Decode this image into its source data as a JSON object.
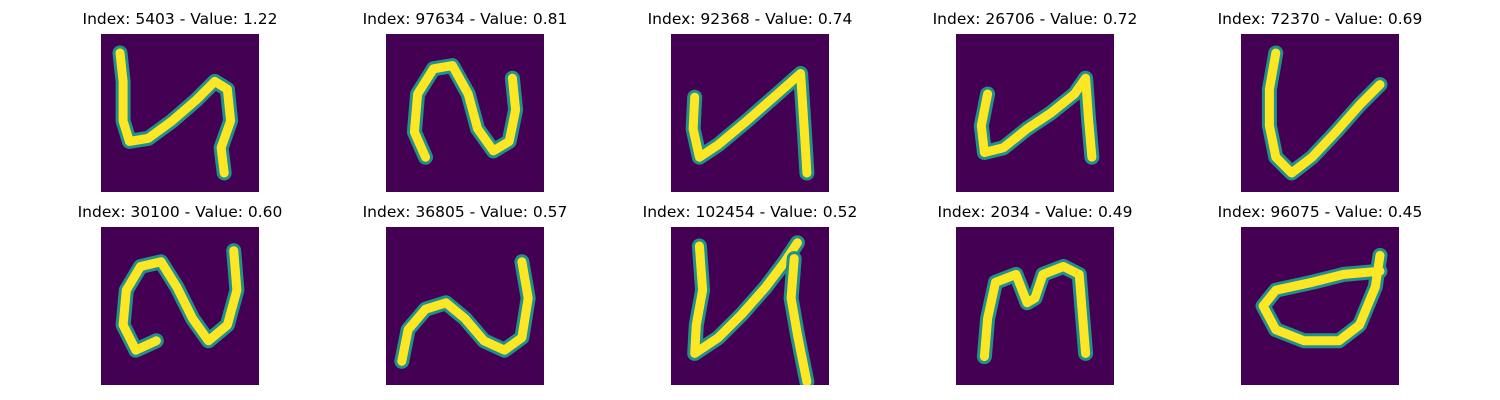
{
  "colors": {
    "background": "#ffffff",
    "image_low": "#440154",
    "image_mid": "#21918c",
    "image_high": "#fde725"
  },
  "panels": [
    {
      "title": "Index: 5403 - Value: 1.22",
      "index": 5403,
      "value": 1.22,
      "strokes": [
        [
          [
            0.12,
            0.12
          ],
          [
            0.14,
            0.3
          ],
          [
            0.14,
            0.55
          ],
          [
            0.18,
            0.68
          ],
          [
            0.3,
            0.66
          ],
          [
            0.45,
            0.55
          ],
          [
            0.6,
            0.42
          ],
          [
            0.72,
            0.3
          ],
          [
            0.8,
            0.35
          ],
          [
            0.82,
            0.55
          ],
          [
            0.76,
            0.72
          ],
          [
            0.78,
            0.88
          ]
        ]
      ]
    },
    {
      "title": "Index: 97634 - Value: 0.81",
      "index": 97634,
      "value": 0.81,
      "strokes": [
        [
          [
            0.25,
            0.78
          ],
          [
            0.18,
            0.62
          ],
          [
            0.2,
            0.38
          ],
          [
            0.3,
            0.22
          ],
          [
            0.42,
            0.2
          ],
          [
            0.52,
            0.38
          ],
          [
            0.58,
            0.6
          ],
          [
            0.68,
            0.74
          ],
          [
            0.78,
            0.68
          ],
          [
            0.82,
            0.48
          ],
          [
            0.8,
            0.28
          ]
        ]
      ]
    },
    {
      "title": "Index: 92368 - Value: 0.74",
      "index": 92368,
      "value": 0.74,
      "strokes": [
        [
          [
            0.15,
            0.4
          ],
          [
            0.14,
            0.6
          ],
          [
            0.18,
            0.78
          ],
          [
            0.3,
            0.7
          ],
          [
            0.48,
            0.55
          ],
          [
            0.65,
            0.4
          ],
          [
            0.82,
            0.25
          ],
          [
            0.84,
            0.55
          ],
          [
            0.86,
            0.88
          ]
        ]
      ]
    },
    {
      "title": "Index: 26706 - Value: 0.72",
      "index": 26706,
      "value": 0.72,
      "strokes": [
        [
          [
            0.2,
            0.38
          ],
          [
            0.16,
            0.58
          ],
          [
            0.18,
            0.75
          ],
          [
            0.3,
            0.72
          ],
          [
            0.45,
            0.6
          ],
          [
            0.6,
            0.5
          ],
          [
            0.75,
            0.38
          ],
          [
            0.82,
            0.28
          ],
          [
            0.84,
            0.55
          ],
          [
            0.86,
            0.78
          ]
        ]
      ]
    },
    {
      "title": "Index: 72370 - Value: 0.69",
      "index": 72370,
      "value": 0.69,
      "strokes": [
        [
          [
            0.22,
            0.12
          ],
          [
            0.18,
            0.35
          ],
          [
            0.18,
            0.58
          ],
          [
            0.22,
            0.78
          ],
          [
            0.32,
            0.88
          ],
          [
            0.45,
            0.78
          ],
          [
            0.6,
            0.62
          ],
          [
            0.75,
            0.45
          ],
          [
            0.88,
            0.32
          ]
        ]
      ]
    },
    {
      "title": "Index: 30100 - Value: 0.60",
      "index": 30100,
      "value": 0.6,
      "strokes": [
        [
          [
            0.35,
            0.72
          ],
          [
            0.22,
            0.78
          ],
          [
            0.14,
            0.62
          ],
          [
            0.16,
            0.4
          ],
          [
            0.25,
            0.25
          ],
          [
            0.38,
            0.22
          ],
          [
            0.48,
            0.38
          ],
          [
            0.58,
            0.58
          ],
          [
            0.68,
            0.72
          ],
          [
            0.8,
            0.62
          ],
          [
            0.86,
            0.4
          ],
          [
            0.84,
            0.15
          ]
        ]
      ]
    },
    {
      "title": "Index: 36805 - Value: 0.57",
      "index": 36805,
      "value": 0.57,
      "strokes": [
        [
          [
            0.1,
            0.85
          ],
          [
            0.14,
            0.65
          ],
          [
            0.25,
            0.52
          ],
          [
            0.38,
            0.48
          ],
          [
            0.5,
            0.58
          ],
          [
            0.62,
            0.72
          ],
          [
            0.75,
            0.78
          ],
          [
            0.86,
            0.7
          ],
          [
            0.9,
            0.45
          ],
          [
            0.86,
            0.22
          ]
        ]
      ]
    },
    {
      "title": "Index: 102454 - Value: 0.52",
      "index": 102454,
      "value": 0.52,
      "strokes": [
        [
          [
            0.18,
            0.12
          ],
          [
            0.2,
            0.4
          ],
          [
            0.16,
            0.62
          ],
          [
            0.15,
            0.8
          ],
          [
            0.3,
            0.7
          ],
          [
            0.45,
            0.55
          ],
          [
            0.6,
            0.38
          ],
          [
            0.72,
            0.22
          ],
          [
            0.8,
            0.1
          ]
        ],
        [
          [
            0.78,
            0.2
          ],
          [
            0.76,
            0.45
          ],
          [
            0.8,
            0.68
          ],
          [
            0.84,
            0.88
          ],
          [
            0.86,
            0.98
          ]
        ]
      ]
    },
    {
      "title": "Index: 2034 - Value: 0.49",
      "index": 2034,
      "value": 0.49,
      "strokes": [
        [
          [
            0.18,
            0.82
          ],
          [
            0.2,
            0.58
          ],
          [
            0.25,
            0.35
          ],
          [
            0.38,
            0.3
          ],
          [
            0.45,
            0.48
          ],
          [
            0.5,
            0.45
          ],
          [
            0.55,
            0.3
          ],
          [
            0.68,
            0.25
          ],
          [
            0.78,
            0.3
          ],
          [
            0.8,
            0.55
          ],
          [
            0.82,
            0.8
          ]
        ]
      ]
    },
    {
      "title": "Index: 96075 - Value: 0.45",
      "index": 96075,
      "value": 0.45,
      "strokes": [
        [
          [
            0.88,
            0.18
          ],
          [
            0.85,
            0.38
          ],
          [
            0.75,
            0.62
          ],
          [
            0.62,
            0.72
          ],
          [
            0.4,
            0.72
          ],
          [
            0.22,
            0.65
          ],
          [
            0.14,
            0.5
          ],
          [
            0.22,
            0.4
          ],
          [
            0.45,
            0.35
          ],
          [
            0.65,
            0.3
          ],
          [
            0.88,
            0.28
          ]
        ]
      ]
    }
  ]
}
